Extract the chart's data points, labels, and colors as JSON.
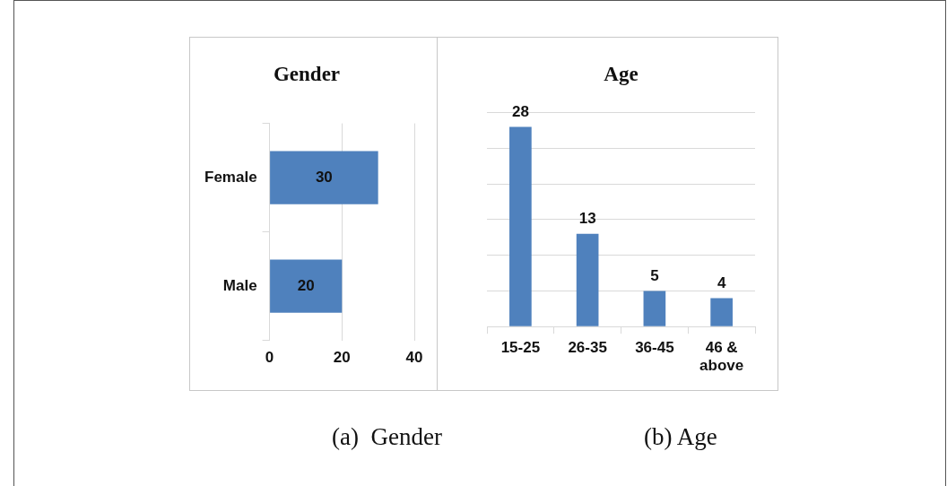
{
  "chart_data": [
    {
      "type": "bar",
      "orientation": "horizontal",
      "title": "Gender",
      "categories": [
        "Female",
        "Male"
      ],
      "values": [
        30,
        20
      ],
      "color": "#4f81bd",
      "xlim": [
        0,
        40
      ],
      "xticks": [
        0,
        20,
        40
      ],
      "grid": "x",
      "data_labels": true,
      "legend": false,
      "annotations": [
        "(a)  Gender"
      ]
    },
    {
      "type": "bar",
      "title": "Age",
      "categories": [
        "15-25",
        "26-35",
        "36-45",
        "46 & above"
      ],
      "values": [
        28,
        13,
        5,
        4
      ],
      "color": "#4f81bd",
      "ylim": [
        0,
        30
      ],
      "yticks": [
        {
          "value": 0,
          "label": null
        },
        {
          "value": 5,
          "label": null
        },
        {
          "value": 10,
          "label": null
        },
        {
          "value": 15,
          "label": null
        },
        {
          "value": 20,
          "label": null
        },
        {
          "value": 25,
          "label": null
        },
        {
          "value": 30,
          "label": null
        }
      ],
      "grid": "y",
      "tick_labels": "x",
      "data_labels": true,
      "legend": false,
      "annotations": [
        "(b) Age"
      ]
    }
  ]
}
